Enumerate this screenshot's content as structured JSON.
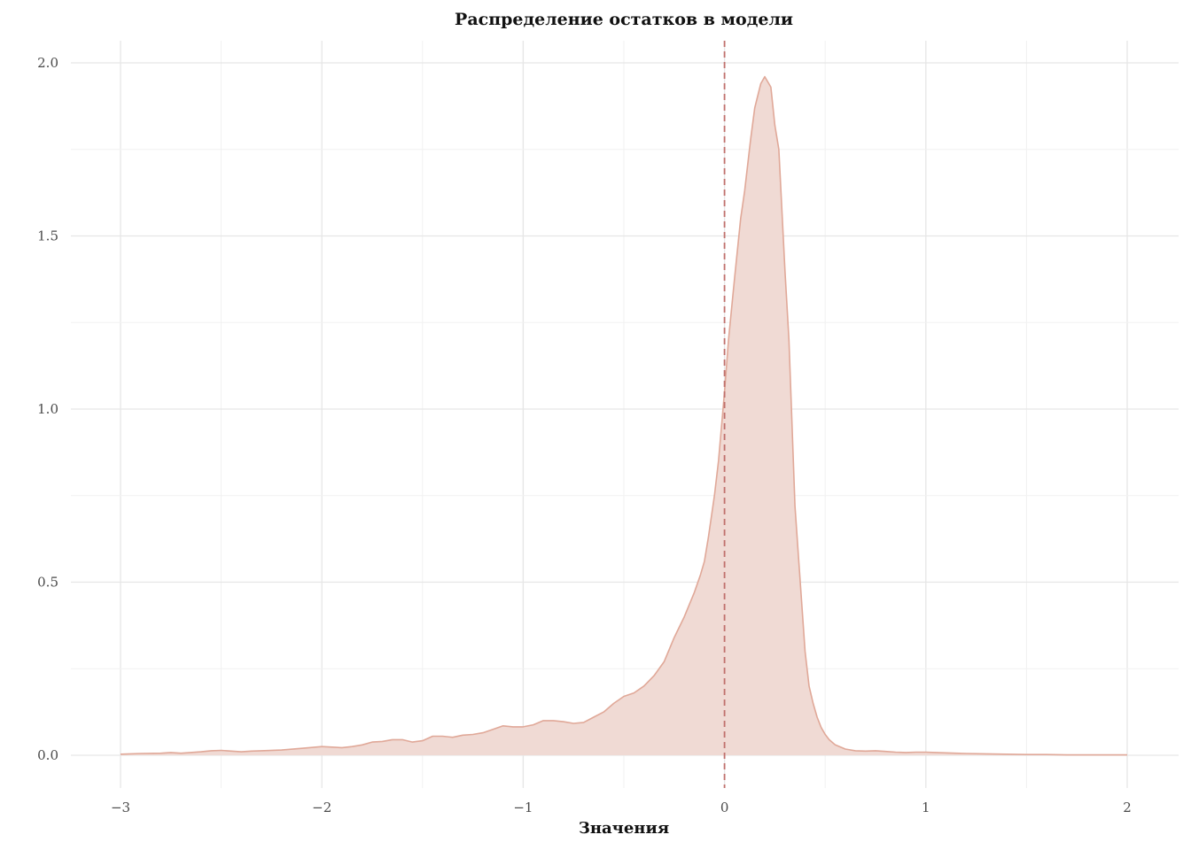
{
  "chart_data": {
    "type": "area",
    "title": "Распределение остатков в модели",
    "xlabel": "Значения",
    "ylabel": "",
    "xlim": [
      -3,
      2
    ],
    "ylim": [
      0,
      2.0
    ],
    "x_ticks": [
      "−3",
      "−2",
      "−1",
      "0",
      "1",
      "2"
    ],
    "y_ticks": [
      "0.0",
      "0.5",
      "1.0",
      "1.5",
      "2.0"
    ],
    "grid": true,
    "legend": "none",
    "reference_line": {
      "x": 0,
      "style": "dashed",
      "color": "#c0706c"
    },
    "fill_color": "#f0dad4",
    "line_color": "#e0a898",
    "series": [
      {
        "x": [
          -3.0,
          -2.9,
          -2.8,
          -2.75,
          -2.7,
          -2.6,
          -2.55,
          -2.5,
          -2.45,
          -2.4,
          -2.35,
          -2.3,
          -2.2,
          -2.1,
          -2.0,
          -1.9,
          -1.85,
          -1.8,
          -1.75,
          -1.7,
          -1.65,
          -1.6,
          -1.55,
          -1.5,
          -1.45,
          -1.4,
          -1.35,
          -1.3,
          -1.25,
          -1.2,
          -1.15,
          -1.1,
          -1.05,
          -1.0,
          -0.95,
          -0.9,
          -0.85,
          -0.8,
          -0.75,
          -0.7,
          -0.65,
          -0.6,
          -0.55,
          -0.5,
          -0.45,
          -0.4,
          -0.35,
          -0.3,
          -0.25,
          -0.2,
          -0.15,
          -0.12,
          -0.1,
          -0.08,
          -0.05,
          -0.03,
          0.0,
          0.02,
          0.05,
          0.08,
          0.1,
          0.13,
          0.15,
          0.18,
          0.2,
          0.23,
          0.25,
          0.27,
          0.3,
          0.32,
          0.35,
          0.37,
          0.4,
          0.42,
          0.44,
          0.46,
          0.48,
          0.5,
          0.52,
          0.55,
          0.6,
          0.65,
          0.7,
          0.75,
          0.8,
          0.85,
          0.9,
          0.95,
          1.0,
          1.05,
          1.1,
          1.15,
          1.2,
          1.3,
          1.4,
          1.5,
          1.6,
          1.7,
          1.8,
          1.9,
          2.0
        ],
        "y": [
          0.003,
          0.005,
          0.006,
          0.008,
          0.006,
          0.01,
          0.013,
          0.014,
          0.012,
          0.01,
          0.012,
          0.013,
          0.015,
          0.02,
          0.025,
          0.022,
          0.025,
          0.03,
          0.038,
          0.04,
          0.045,
          0.045,
          0.038,
          0.042,
          0.055,
          0.055,
          0.052,
          0.058,
          0.06,
          0.065,
          0.075,
          0.085,
          0.082,
          0.082,
          0.088,
          0.1,
          0.1,
          0.097,
          0.092,
          0.095,
          0.11,
          0.125,
          0.15,
          0.17,
          0.18,
          0.2,
          0.23,
          0.27,
          0.34,
          0.4,
          0.47,
          0.52,
          0.56,
          0.63,
          0.75,
          0.85,
          1.05,
          1.2,
          1.38,
          1.55,
          1.63,
          1.78,
          1.87,
          1.94,
          1.96,
          1.93,
          1.82,
          1.75,
          1.4,
          1.2,
          0.72,
          0.55,
          0.3,
          0.2,
          0.15,
          0.11,
          0.08,
          0.06,
          0.045,
          0.03,
          0.018,
          0.013,
          0.012,
          0.013,
          0.011,
          0.009,
          0.008,
          0.009,
          0.009,
          0.008,
          0.007,
          0.006,
          0.005,
          0.004,
          0.003,
          0.002,
          0.002,
          0.001,
          0.001,
          0.001,
          0.001
        ]
      }
    ]
  }
}
